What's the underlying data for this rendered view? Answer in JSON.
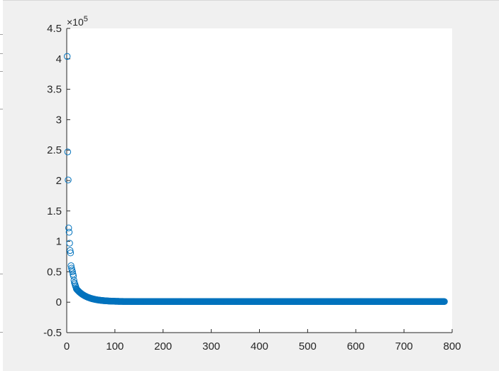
{
  "chart_data": {
    "type": "scatter",
    "title": "",
    "xlabel": "",
    "ylabel": "",
    "xlim": [
      0,
      800
    ],
    "ylim": [
      -0.5,
      4.5
    ],
    "y_scale_exponent": "×10",
    "y_scale_power": "5",
    "x_ticks": [
      "0",
      "100",
      "200",
      "300",
      "400",
      "500",
      "600",
      "700",
      "800"
    ],
    "y_ticks": [
      "-0.5",
      "0",
      "0.5",
      "1",
      "1.5",
      "2",
      "2.5",
      "3",
      "3.5",
      "4",
      "4.5"
    ],
    "grid": false,
    "marker": "circle",
    "marker_color": "#0072bd",
    "series": [
      {
        "n_points": 784,
        "points": [
          [
            1,
            4.04
          ],
          [
            2,
            2.47
          ],
          [
            3,
            2.01
          ],
          [
            4,
            1.22
          ],
          [
            5,
            1.15
          ],
          [
            6,
            0.97
          ],
          [
            7,
            0.85
          ],
          [
            8,
            0.81
          ],
          [
            9,
            0.6
          ],
          [
            10,
            0.56
          ],
          [
            11,
            0.53
          ],
          [
            12,
            0.5
          ],
          [
            13,
            0.46
          ],
          [
            14,
            0.43
          ],
          [
            15,
            0.36
          ],
          [
            16,
            0.32
          ],
          [
            17,
            0.3
          ],
          [
            18,
            0.27
          ],
          [
            19,
            0.25
          ],
          [
            20,
            0.22
          ]
        ],
        "tail_decay": {
          "from_x": 20,
          "to_x": 784,
          "start_value": 0.22,
          "end_value": 0.01
        }
      }
    ]
  }
}
